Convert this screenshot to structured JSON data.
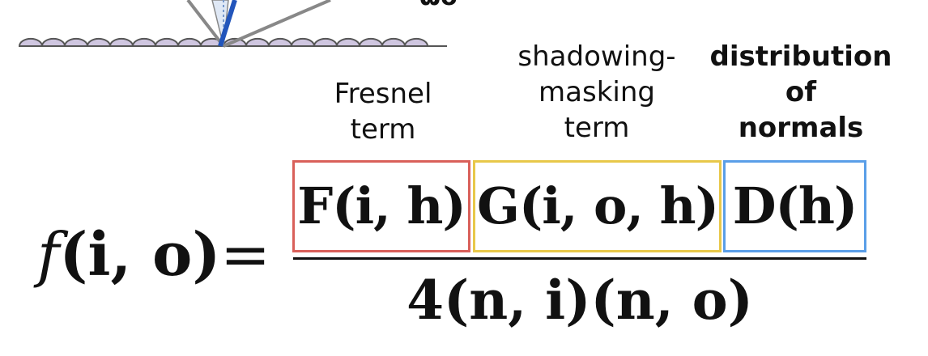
{
  "top_clip_text": "ωo",
  "labels": {
    "fresnel": [
      "Fresnel",
      "term"
    ],
    "shadowing": [
      "shadowing-",
      "masking",
      "term"
    ],
    "distribution": [
      "distribution",
      "of",
      "normals"
    ]
  },
  "equation": {
    "lhs_func": "f",
    "lhs_args": "(i, o)",
    "equals": "=",
    "numerator": {
      "F": "F",
      "F_args": "(i, h)",
      "G": "G",
      "G_args": "(i, o, h)",
      "D": "D",
      "D_args": "(h)"
    },
    "denominator": "4(n, i)(n, o)"
  },
  "colors": {
    "fresnel_box": "#d9605a",
    "shadowing_box": "#e8c84a",
    "distribution_box": "#5a9ee8",
    "surface_fill": "#cfc6e0",
    "surface_stroke": "#555555",
    "normal_ray": "#2255bb",
    "rays": "#888888"
  }
}
